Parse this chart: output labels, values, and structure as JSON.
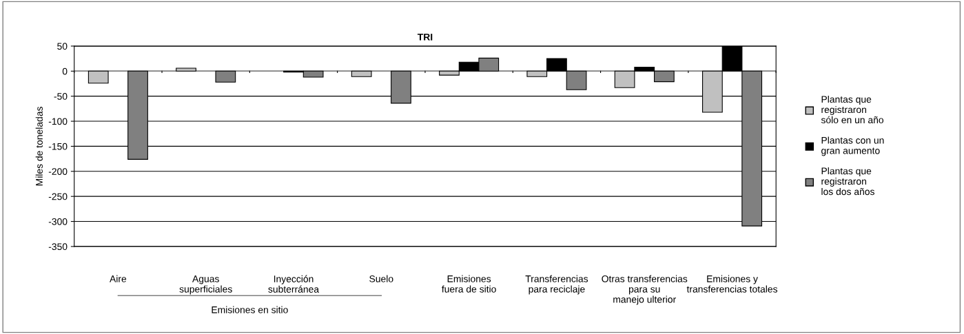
{
  "chart_data": {
    "type": "bar",
    "title": "TRI",
    "ylabel": "Miles de toneladas",
    "categories": [
      "Aire",
      "Aguas\nsuperficiales",
      "Inyección\nsubterránea",
      "Suelo",
      "Emisiones\nfuera de sitio",
      "Transferencias\npara reciclaje",
      "Otras transferencias\npara su\nmanejo ulterior",
      "Emisiones y\ntransferencias totales"
    ],
    "series": [
      {
        "name": "Plantas que\nregistraron\nsólo en un año",
        "color": "#c0c0c0",
        "values": [
          -24,
          6,
          null,
          -11,
          -8,
          -11,
          -33,
          -82
        ]
      },
      {
        "name": "Plantas con un\ngran aumento",
        "color": "#000000",
        "values": [
          null,
          null,
          -2,
          null,
          18,
          25,
          8,
          49
        ]
      },
      {
        "name": "Plantas que\nregistraron\nlos dos años",
        "color": "#808080",
        "values": [
          -176,
          -22,
          -12,
          -64,
          26,
          -37,
          -21,
          -309
        ]
      }
    ],
    "annotations": [
      "Emisiones en sitio"
    ],
    "ylim": [
      -350,
      50
    ],
    "yticks": [
      -350,
      -300,
      -250,
      -200,
      -150,
      -100,
      -50,
      0,
      50
    ],
    "grid": "y",
    "legend": "right"
  }
}
